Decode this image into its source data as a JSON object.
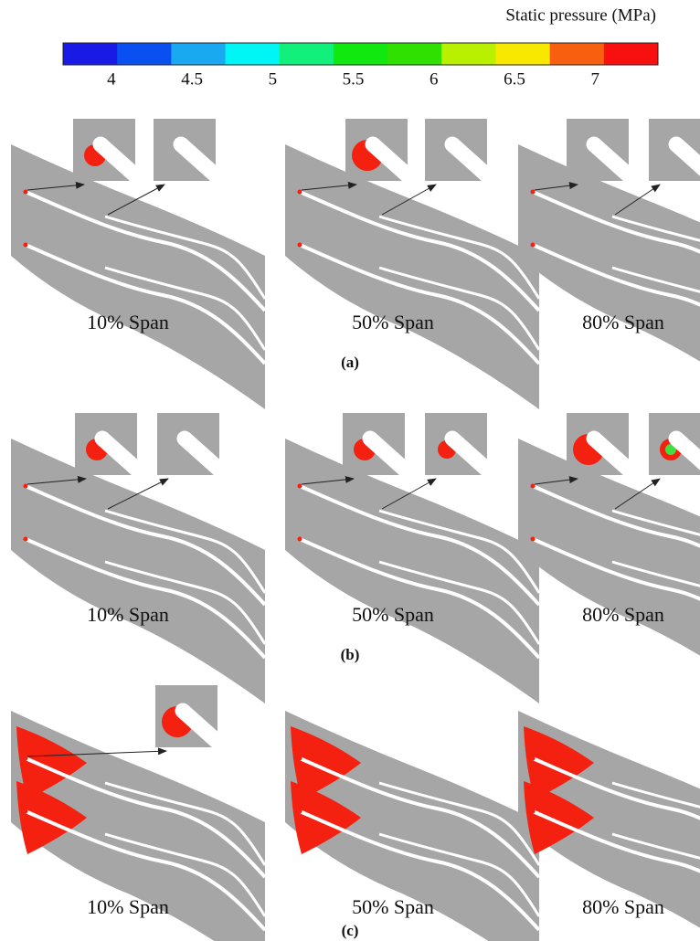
{
  "colorbar": {
    "title": "Static pressure (MPa)",
    "ticks": [
      4,
      4.5,
      5,
      5.5,
      6,
      6.5,
      7
    ],
    "range": [
      3.7,
      7.39
    ],
    "colors": [
      "#1a1ae6",
      "#0a50f0",
      "#1aa8f0",
      "#00f5f5",
      "#10f07a",
      "#10e810",
      "#30e000",
      "#b8f000",
      "#f8e800",
      "#f86010",
      "#f81010"
    ]
  },
  "rows": [
    {
      "label": "(a)",
      "panels": [
        "10% Span",
        "50% Span",
        "80% Span"
      ]
    },
    {
      "label": "(b)",
      "panels": [
        "10% Span",
        "50% Span",
        "80% Span"
      ]
    },
    {
      "label": "(c)",
      "panels": [
        "10% Span",
        "50% Span",
        "80% Span"
      ]
    }
  ]
}
